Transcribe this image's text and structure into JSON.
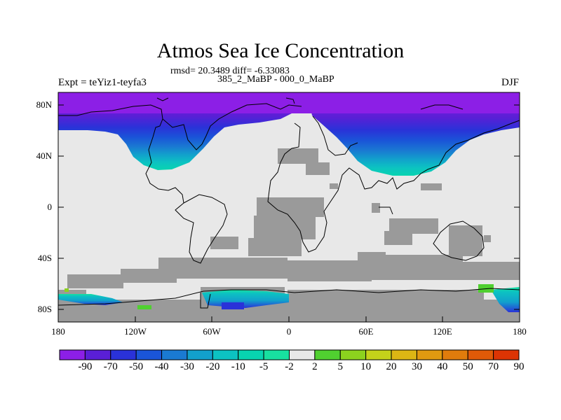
{
  "title": "Atmos Sea Ice Concentration",
  "stats_line": "rmsd= 20.3489 diff= -6.33083",
  "subtitle": "385_2_MaBP - 000_0_MaBP",
  "experiment": "Expt = teYiz1-teyfa3",
  "season": "DJF",
  "lat_labels": [
    "80N",
    "40N",
    "0",
    "40S",
    "80S"
  ],
  "lon_labels": [
    "180",
    "120W",
    "60W",
    "0",
    "60E",
    "120E",
    "180"
  ],
  "colorbar": {
    "labels": [
      "-90",
      "-70",
      "-50",
      "-40",
      "-30",
      "-20",
      "-10",
      "-5",
      "-2",
      "2",
      "5",
      "10",
      "20",
      "30",
      "40",
      "50",
      "70",
      "90"
    ],
    "colors": [
      "#8c1fe6",
      "#5a1fd6",
      "#2a32d8",
      "#1a55d8",
      "#1a7ad2",
      "#12a0cc",
      "#0cc2c2",
      "#08d4b0",
      "#18e0a0",
      "#e8e8e8",
      "#50d030",
      "#8cd21e",
      "#c4d21a",
      "#dcb614",
      "#e09a10",
      "#e07c0c",
      "#e05a08",
      "#dc3404"
    ]
  },
  "map_colors": {
    "ocean_neutral": "#e8e8e8",
    "land_mask": "#9a9a9a",
    "coast": "#000000"
  }
}
